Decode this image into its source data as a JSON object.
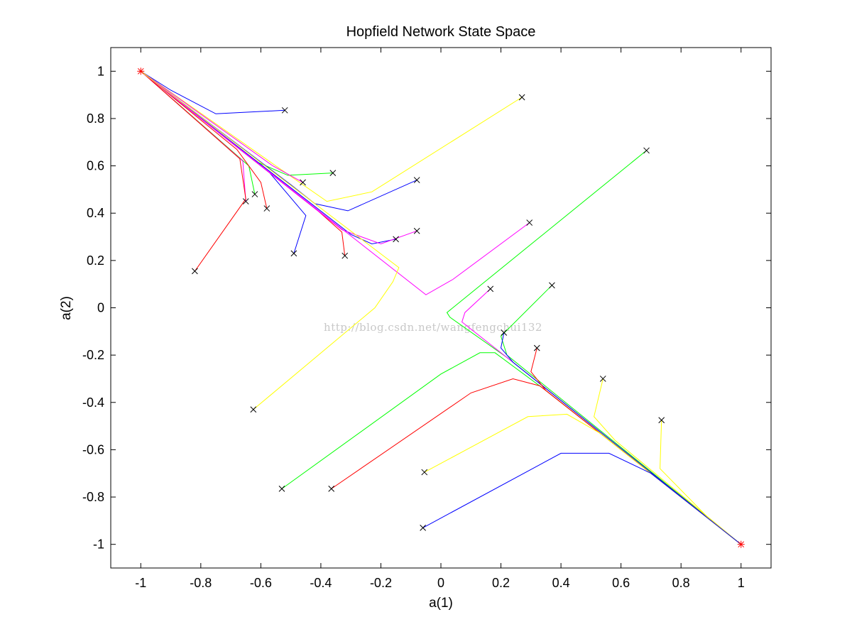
{
  "chart_data": {
    "type": "line",
    "title": "Hopfield Network State Space",
    "xlabel": "a(1)",
    "ylabel": "a(2)",
    "xlim": [
      -1.1,
      1.1
    ],
    "ylim": [
      -1.1,
      1.1
    ],
    "xticks": [
      -1,
      -0.8,
      -0.6,
      -0.4,
      -0.2,
      0,
      0.2,
      0.4,
      0.6,
      0.8,
      1
    ],
    "yticks": [
      -1,
      -0.8,
      -0.6,
      -0.4,
      -0.2,
      0,
      0.2,
      0.4,
      0.6,
      0.8,
      1
    ],
    "xtick_labels": [
      "-1",
      "-0.8",
      "-0.6",
      "-0.4",
      "-0.2",
      "0",
      "0.2",
      "0.4",
      "0.6",
      "0.8",
      "1"
    ],
    "ytick_labels": [
      "-1",
      "-0.8",
      "-0.6",
      "-0.4",
      "-0.2",
      "0",
      "0.2",
      "0.4",
      "0.6",
      "0.8",
      "1"
    ],
    "grid": false,
    "start_marker": "x",
    "end_marker": "*",
    "end_marker_color": "#ff0000",
    "attractors": [
      [
        -1,
        1
      ],
      [
        1,
        -1
      ]
    ],
    "watermark": "http://blog.csdn.net/wangfengchui132",
    "series": [
      {
        "color": "#0000ff",
        "points": [
          [
            -0.52,
            0.835
          ],
          [
            -0.75,
            0.82
          ],
          [
            -0.9,
            0.92
          ],
          [
            -1,
            1
          ]
        ]
      },
      {
        "color": "#ffff00",
        "points": [
          [
            0.27,
            0.89
          ],
          [
            -0.23,
            0.49
          ],
          [
            -0.38,
            0.45
          ],
          [
            -0.55,
            0.6
          ],
          [
            -1,
            1
          ]
        ]
      },
      {
        "color": "#00ff00",
        "points": [
          [
            -0.36,
            0.57
          ],
          [
            -0.51,
            0.56
          ],
          [
            -0.62,
            0.62
          ],
          [
            -1,
            1
          ]
        ]
      },
      {
        "color": "#ff00ff",
        "points": [
          [
            -0.46,
            0.53
          ],
          [
            -0.56,
            0.6
          ],
          [
            -1,
            1
          ]
        ]
      },
      {
        "color": "#0000ff",
        "points": [
          [
            -0.08,
            0.54
          ],
          [
            -0.31,
            0.41
          ],
          [
            -0.42,
            0.44
          ],
          [
            -0.5,
            0.52
          ],
          [
            -1,
            1
          ]
        ]
      },
      {
        "color": "#00ff00",
        "points": [
          [
            -0.62,
            0.48
          ],
          [
            -0.64,
            0.6
          ],
          [
            -1,
            1
          ]
        ]
      },
      {
        "color": "#ff00ff",
        "points": [
          [
            -0.65,
            0.45
          ],
          [
            -0.66,
            0.62
          ],
          [
            -1,
            1
          ]
        ]
      },
      {
        "color": "#ff0000",
        "points": [
          [
            -0.58,
            0.42
          ],
          [
            -0.6,
            0.53
          ],
          [
            -0.68,
            0.67
          ],
          [
            -1,
            1
          ]
        ]
      },
      {
        "color": "#ff0000",
        "points": [
          [
            -0.82,
            0.155
          ],
          [
            -0.65,
            0.46
          ],
          [
            -0.67,
            0.63
          ],
          [
            -1,
            1
          ]
        ]
      },
      {
        "color": "#0000ff",
        "points": [
          [
            -0.49,
            0.23
          ],
          [
            -0.45,
            0.39
          ],
          [
            -0.57,
            0.57
          ],
          [
            -1,
            1
          ]
        ]
      },
      {
        "color": "#ff0000",
        "points": [
          [
            -0.32,
            0.22
          ],
          [
            -0.33,
            0.32
          ],
          [
            -0.41,
            0.41
          ],
          [
            -1,
            1
          ]
        ]
      },
      {
        "color": "#0000ff",
        "points": [
          [
            -0.15,
            0.29
          ],
          [
            -0.23,
            0.27
          ],
          [
            -0.3,
            0.31
          ],
          [
            -1,
            1
          ]
        ]
      },
      {
        "color": "#ff00ff",
        "points": [
          [
            -0.08,
            0.325
          ],
          [
            -0.2,
            0.27
          ],
          [
            -0.33,
            0.33
          ],
          [
            -1,
            1
          ]
        ]
      },
      {
        "color": "#ff00ff",
        "points": [
          [
            0.295,
            0.36
          ],
          [
            0.04,
            0.12
          ],
          [
            -0.05,
            0.055
          ],
          [
            -1,
            1
          ]
        ]
      },
      {
        "color": "#00ff00",
        "points": [
          [
            0.685,
            0.665
          ],
          [
            0.02,
            -0.02
          ],
          [
            0.03,
            -0.04
          ],
          [
            0.22,
            -0.21
          ],
          [
            1,
            -1
          ]
        ]
      },
      {
        "color": "#ffff00",
        "points": [
          [
            -0.625,
            -0.43
          ],
          [
            -0.22,
            0.0
          ],
          [
            -0.16,
            0.11
          ],
          [
            -0.14,
            0.17
          ],
          [
            -1,
            1
          ]
        ]
      },
      {
        "color": "#ff00ff",
        "points": [
          [
            0.165,
            0.08
          ],
          [
            0.08,
            -0.02
          ],
          [
            0.07,
            -0.06
          ],
          [
            0.25,
            -0.24
          ],
          [
            1,
            -1
          ]
        ]
      },
      {
        "color": "#00ff00",
        "points": [
          [
            0.37,
            0.095
          ],
          [
            0.2,
            -0.12
          ],
          [
            0.22,
            -0.2
          ],
          [
            1,
            -1
          ]
        ]
      },
      {
        "color": "#0000ff",
        "points": [
          [
            0.21,
            -0.105
          ],
          [
            0.2,
            -0.17
          ],
          [
            0.24,
            -0.23
          ],
          [
            1,
            -1
          ]
        ]
      },
      {
        "color": "#ff0000",
        "points": [
          [
            0.32,
            -0.17
          ],
          [
            0.3,
            -0.27
          ],
          [
            0.35,
            -0.35
          ],
          [
            1,
            -1
          ]
        ]
      },
      {
        "color": "#00ff00",
        "points": [
          [
            -0.53,
            -0.765
          ],
          [
            0.0,
            -0.28
          ],
          [
            0.13,
            -0.19
          ],
          [
            0.18,
            -0.19
          ],
          [
            0.35,
            -0.35
          ],
          [
            1,
            -1
          ]
        ]
      },
      {
        "color": "#ff0000",
        "points": [
          [
            -0.365,
            -0.765
          ],
          [
            0.1,
            -0.36
          ],
          [
            0.24,
            -0.3
          ],
          [
            0.33,
            -0.33
          ],
          [
            1,
            -1
          ]
        ]
      },
      {
        "color": "#ffff00",
        "points": [
          [
            0.54,
            -0.3
          ],
          [
            0.51,
            -0.46
          ],
          [
            0.58,
            -0.56
          ],
          [
            1,
            -1
          ]
        ]
      },
      {
        "color": "#ffff00",
        "points": [
          [
            -0.055,
            -0.695
          ],
          [
            0.29,
            -0.46
          ],
          [
            0.42,
            -0.45
          ],
          [
            0.53,
            -0.53
          ],
          [
            1,
            -1
          ]
        ]
      },
      {
        "color": "#ffff00",
        "points": [
          [
            0.735,
            -0.475
          ],
          [
            0.73,
            -0.68
          ],
          [
            0.9,
            -0.9
          ],
          [
            1,
            -1
          ]
        ]
      },
      {
        "color": "#0000ff",
        "points": [
          [
            -0.06,
            -0.93
          ],
          [
            0.4,
            -0.615
          ],
          [
            0.56,
            -0.615
          ],
          [
            0.7,
            -0.7
          ],
          [
            1,
            -1
          ]
        ]
      }
    ]
  }
}
